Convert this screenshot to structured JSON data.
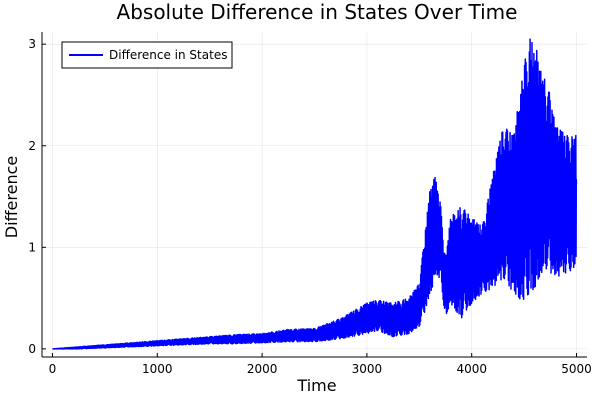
{
  "chart_data": {
    "type": "line",
    "title": "Absolute Difference in States Over Time",
    "xlabel": "Time",
    "ylabel": "Difference",
    "xlim": [
      -100,
      5100
    ],
    "ylim": [
      -0.08,
      3.12
    ],
    "xticks": [
      0,
      1000,
      2000,
      3000,
      4000,
      5000
    ],
    "yticks": [
      0,
      1,
      2,
      3
    ],
    "xtick_labels": [
      "0",
      "1000",
      "2000",
      "3000",
      "4000",
      "5000"
    ],
    "ytick_labels": [
      "0",
      "1",
      "2",
      "3"
    ],
    "grid": true,
    "legend_position": "top-left",
    "series": [
      {
        "name": "Difference in States",
        "color": "#0000ff",
        "envelope_x": [
          0,
          250,
          500,
          750,
          1000,
          1250,
          1500,
          1750,
          2000,
          2250,
          2500,
          2750,
          3000,
          3100,
          3250,
          3400,
          3500,
          3600,
          3650,
          3700,
          3750,
          3800,
          3900,
          4000,
          4100,
          4200,
          4300,
          4400,
          4500,
          4550,
          4600,
          4650,
          4700,
          4750,
          4800,
          4900,
          5000
        ],
        "envelope_high": [
          0.0,
          0.02,
          0.04,
          0.06,
          0.08,
          0.1,
          0.12,
          0.14,
          0.15,
          0.19,
          0.2,
          0.3,
          0.45,
          0.48,
          0.45,
          0.5,
          0.65,
          1.55,
          1.7,
          1.45,
          0.9,
          1.3,
          1.4,
          1.3,
          1.2,
          1.7,
          2.2,
          2.1,
          2.8,
          3.05,
          3.05,
          2.8,
          2.65,
          2.5,
          2.2,
          2.1,
          2.1
        ],
        "envelope_low": [
          0.0,
          0.0,
          0.01,
          0.02,
          0.03,
          0.04,
          0.05,
          0.05,
          0.06,
          0.07,
          0.07,
          0.1,
          0.15,
          0.18,
          0.12,
          0.15,
          0.22,
          0.5,
          0.7,
          0.7,
          0.3,
          0.45,
          0.3,
          0.45,
          0.55,
          0.6,
          0.7,
          0.55,
          0.45,
          0.55,
          0.6,
          0.7,
          0.8,
          0.75,
          0.7,
          0.75,
          0.8
        ]
      }
    ]
  }
}
